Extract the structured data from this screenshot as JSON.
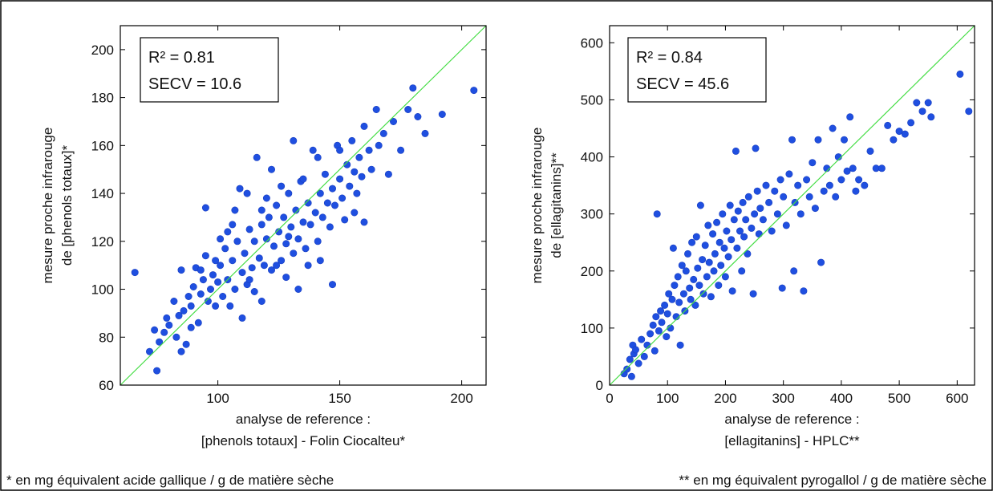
{
  "chart_data": [
    {
      "type": "scatter",
      "title": "",
      "xlabel_lines": [
        "analyse de reference :",
        "[phenols totaux] - Folin Ciocalteu*"
      ],
      "ylabel_lines": [
        "mesure proche infrarouge",
        "de [phenols totaux]*"
      ],
      "xlim": [
        60,
        210
      ],
      "ylim": [
        60,
        210
      ],
      "xticks": [
        100,
        150,
        200
      ],
      "yticks": [
        60,
        80,
        100,
        120,
        140,
        160,
        180,
        200
      ],
      "stats": {
        "r2": "R² = 0.81",
        "secv": "SECV = 10.6"
      },
      "identity_line": [
        [
          60,
          60
        ],
        [
          210,
          210
        ]
      ],
      "point_color": "#1f4fe0",
      "line_color": "#44dd44",
      "points": [
        [
          66,
          107
        ],
        [
          72,
          74
        ],
        [
          74,
          83
        ],
        [
          75,
          66
        ],
        [
          76,
          78
        ],
        [
          78,
          82
        ],
        [
          79,
          88
        ],
        [
          80,
          85
        ],
        [
          82,
          95
        ],
        [
          83,
          80
        ],
        [
          84,
          89
        ],
        [
          85,
          74
        ],
        [
          85,
          108
        ],
        [
          86,
          91
        ],
        [
          87,
          77
        ],
        [
          88,
          97
        ],
        [
          89,
          93
        ],
        [
          90,
          101
        ],
        [
          91,
          109
        ],
        [
          92,
          86
        ],
        [
          93,
          98
        ],
        [
          94,
          104
        ],
        [
          95,
          134
        ],
        [
          96,
          95
        ],
        [
          97,
          100
        ],
        [
          98,
          106
        ],
        [
          99,
          93
        ],
        [
          100,
          103
        ],
        [
          101,
          110
        ],
        [
          102,
          97
        ],
        [
          103,
          117
        ],
        [
          104,
          104
        ],
        [
          105,
          93
        ],
        [
          106,
          112
        ],
        [
          107,
          100
        ],
        [
          108,
          120
        ],
        [
          109,
          142
        ],
        [
          110,
          107
        ],
        [
          111,
          115
        ],
        [
          112,
          102
        ],
        [
          113,
          125
        ],
        [
          114,
          109
        ],
        [
          115,
          120
        ],
        [
          116,
          155
        ],
        [
          117,
          113
        ],
        [
          118,
          127
        ],
        [
          119,
          110
        ],
        [
          120,
          121
        ],
        [
          121,
          130
        ],
        [
          122,
          108
        ],
        [
          123,
          118
        ],
        [
          124,
          135
        ],
        [
          125,
          124
        ],
        [
          126,
          112
        ],
        [
          127,
          130
        ],
        [
          128,
          119
        ],
        [
          129,
          140
        ],
        [
          130,
          126
        ],
        [
          131,
          115
        ],
        [
          132,
          133
        ],
        [
          133,
          121
        ],
        [
          134,
          145
        ],
        [
          135,
          128
        ],
        [
          136,
          117
        ],
        [
          137,
          136
        ],
        [
          138,
          127
        ],
        [
          139,
          158
        ],
        [
          140,
          132
        ],
        [
          141,
          120
        ],
        [
          142,
          140
        ],
        [
          143,
          130
        ],
        [
          144,
          148
        ],
        [
          145,
          136
        ],
        [
          146,
          126
        ],
        [
          147,
          142
        ],
        [
          148,
          135
        ],
        [
          149,
          160
        ],
        [
          150,
          146
        ],
        [
          151,
          138
        ],
        [
          152,
          129
        ],
        [
          153,
          152
        ],
        [
          154,
          143
        ],
        [
          155,
          162
        ],
        [
          156,
          149
        ],
        [
          157,
          140
        ],
        [
          158,
          155
        ],
        [
          159,
          147
        ],
        [
          160,
          168
        ],
        [
          162,
          158
        ],
        [
          163,
          150
        ],
        [
          165,
          175
        ],
        [
          166,
          160
        ],
        [
          168,
          165
        ],
        [
          170,
          148
        ],
        [
          172,
          170
        ],
        [
          175,
          158
        ],
        [
          178,
          175
        ],
        [
          180,
          184
        ],
        [
          182,
          172
        ],
        [
          185,
          165
        ],
        [
          192,
          173
        ],
        [
          205,
          183
        ],
        [
          120,
          138
        ],
        [
          113,
          104
        ],
        [
          101,
          121
        ],
        [
          95,
          114
        ],
        [
          118,
          95
        ],
        [
          128,
          105
        ],
        [
          135,
          146
        ],
        [
          110,
          88
        ],
        [
          142,
          112
        ],
        [
          147,
          102
        ],
        [
          160,
          128
        ],
        [
          131,
          162
        ],
        [
          104,
          124
        ],
        [
          122,
          150
        ],
        [
          93,
          108
        ],
        [
          107,
          133
        ],
        [
          89,
          84
        ],
        [
          150,
          158
        ],
        [
          137,
          110
        ],
        [
          126,
          143
        ],
        [
          115,
          99
        ],
        [
          99,
          112
        ],
        [
          112,
          140
        ],
        [
          156,
          132
        ],
        [
          141,
          155
        ],
        [
          118,
          133
        ],
        [
          106,
          127
        ],
        [
          129,
          122
        ],
        [
          133,
          100
        ],
        [
          124,
          110
        ]
      ]
    },
    {
      "type": "scatter",
      "title": "",
      "xlabel_lines": [
        "analyse de reference :",
        "[ellagitanins] - HPLC**"
      ],
      "ylabel_lines": [
        "mesure proche infrarouge",
        "de [ellagitanins]**"
      ],
      "xlim": [
        0,
        630
      ],
      "ylim": [
        0,
        630
      ],
      "xticks": [
        0,
        100,
        200,
        300,
        400,
        500,
        600
      ],
      "yticks": [
        0,
        100,
        200,
        300,
        400,
        500,
        600
      ],
      "stats": {
        "r2": "R² = 0.84",
        "secv": "SECV = 45.6"
      },
      "identity_line": [
        [
          0,
          0
        ],
        [
          630,
          630
        ]
      ],
      "point_color": "#1f4fe0",
      "line_color": "#44dd44",
      "points": [
        [
          25,
          20
        ],
        [
          30,
          28
        ],
        [
          35,
          45
        ],
        [
          38,
          15
        ],
        [
          40,
          70
        ],
        [
          42,
          55
        ],
        [
          45,
          62
        ],
        [
          50,
          38
        ],
        [
          55,
          80
        ],
        [
          60,
          50
        ],
        [
          65,
          70
        ],
        [
          70,
          90
        ],
        [
          75,
          105
        ],
        [
          78,
          60
        ],
        [
          80,
          120
        ],
        [
          82,
          300
        ],
        [
          85,
          95
        ],
        [
          88,
          130
        ],
        [
          90,
          110
        ],
        [
          95,
          140
        ],
        [
          98,
          85
        ],
        [
          100,
          125
        ],
        [
          102,
          160
        ],
        [
          105,
          100
        ],
        [
          108,
          150
        ],
        [
          110,
          240
        ],
        [
          112,
          175
        ],
        [
          115,
          120
        ],
        [
          118,
          190
        ],
        [
          120,
          145
        ],
        [
          122,
          70
        ],
        [
          125,
          210
        ],
        [
          128,
          160
        ],
        [
          130,
          130
        ],
        [
          132,
          200
        ],
        [
          135,
          230
        ],
        [
          138,
          170
        ],
        [
          140,
          150
        ],
        [
          142,
          250
        ],
        [
          145,
          185
        ],
        [
          148,
          140
        ],
        [
          150,
          260
        ],
        [
          152,
          205
        ],
        [
          155,
          175
        ],
        [
          157,
          315
        ],
        [
          160,
          220
        ],
        [
          162,
          160
        ],
        [
          165,
          245
        ],
        [
          168,
          190
        ],
        [
          170,
          280
        ],
        [
          172,
          215
        ],
        [
          175,
          155
        ],
        [
          178,
          265
        ],
        [
          180,
          200
        ],
        [
          182,
          230
        ],
        [
          185,
          285
        ],
        [
          188,
          175
        ],
        [
          190,
          250
        ],
        [
          192,
          210
        ],
        [
          195,
          300
        ],
        [
          198,
          240
        ],
        [
          200,
          190
        ],
        [
          202,
          270
        ],
        [
          205,
          225
        ],
        [
          208,
          315
        ],
        [
          210,
          255
        ],
        [
          212,
          165
        ],
        [
          215,
          290
        ],
        [
          218,
          410
        ],
        [
          220,
          240
        ],
        [
          222,
          305
        ],
        [
          225,
          270
        ],
        [
          228,
          200
        ],
        [
          230,
          320
        ],
        [
          232,
          260
        ],
        [
          235,
          290
        ],
        [
          238,
          230
        ],
        [
          240,
          330
        ],
        [
          245,
          275
        ],
        [
          248,
          160
        ],
        [
          250,
          300
        ],
        [
          252,
          415
        ],
        [
          255,
          340
        ],
        [
          258,
          265
        ],
        [
          260,
          310
        ],
        [
          265,
          290
        ],
        [
          270,
          350
        ],
        [
          275,
          320
        ],
        [
          280,
          270
        ],
        [
          285,
          340
        ],
        [
          290,
          300
        ],
        [
          295,
          360
        ],
        [
          298,
          170
        ],
        [
          300,
          330
        ],
        [
          305,
          280
        ],
        [
          310,
          370
        ],
        [
          315,
          430
        ],
        [
          318,
          200
        ],
        [
          320,
          320
        ],
        [
          325,
          350
        ],
        [
          330,
          300
        ],
        [
          335,
          165
        ],
        [
          340,
          360
        ],
        [
          345,
          330
        ],
        [
          350,
          390
        ],
        [
          355,
          310
        ],
        [
          360,
          430
        ],
        [
          365,
          215
        ],
        [
          370,
          340
        ],
        [
          375,
          380
        ],
        [
          380,
          350
        ],
        [
          385,
          450
        ],
        [
          390,
          330
        ],
        [
          395,
          400
        ],
        [
          400,
          360
        ],
        [
          405,
          430
        ],
        [
          410,
          375
        ],
        [
          415,
          470
        ],
        [
          420,
          380
        ],
        [
          425,
          340
        ],
        [
          430,
          360
        ],
        [
          440,
          350
        ],
        [
          450,
          410
        ],
        [
          460,
          380
        ],
        [
          470,
          380
        ],
        [
          480,
          455
        ],
        [
          490,
          430
        ],
        [
          500,
          445
        ],
        [
          510,
          440
        ],
        [
          520,
          460
        ],
        [
          530,
          495
        ],
        [
          540,
          480
        ],
        [
          550,
          495
        ],
        [
          555,
          470
        ],
        [
          605,
          545
        ],
        [
          620,
          480
        ]
      ]
    }
  ],
  "footnotes": {
    "left": "* en mg équivalent acide gallique / g de matière sèche",
    "right": "** en mg équivalent pyrogallol / g de matière sèche"
  }
}
